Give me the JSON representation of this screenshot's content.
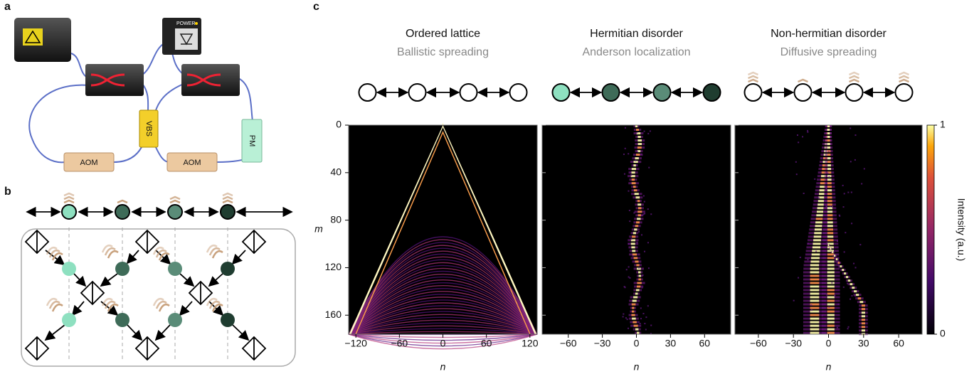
{
  "panels": {
    "a": {
      "letter": "a",
      "labels": {
        "aom_left": "AOM",
        "aom_right": "AOM",
        "vbs": "VBS",
        "pm": "PM",
        "power": "POWER"
      }
    },
    "b": {
      "letter": "b"
    },
    "c": {
      "letter": "c",
      "x_label": "n",
      "y_label": "m",
      "colorbar": {
        "label": "Intensity (a.u.)",
        "ticks": [
          {
            "value": 0,
            "label": "0"
          },
          {
            "value": 1,
            "label": "1"
          }
        ]
      },
      "ylim": [
        0,
        176
      ],
      "yticks": [
        0,
        40,
        80,
        120,
        160
      ],
      "plots": [
        {
          "title": "Ordered lattice",
          "subtitle": "Ballistic spreading",
          "xlim": [
            -130,
            130
          ],
          "xticks": [
            {
              "value": -120,
              "label": "−120"
            },
            {
              "value": -60,
              "label": "−60"
            },
            0,
            60,
            120
          ]
        },
        {
          "title": "Hermitian disorder",
          "subtitle": "Anderson localization",
          "xlim": [
            -83,
            83
          ],
          "xticks": [
            {
              "value": -60,
              "label": "−60"
            },
            {
              "value": -30,
              "label": "−30"
            },
            0,
            30,
            60
          ]
        },
        {
          "title": "Non-hermitian disorder",
          "subtitle": "Diffusive spreading",
          "xlim": [
            -80,
            80
          ],
          "xticks": [
            {
              "value": -60,
              "label": "−60"
            },
            {
              "value": -30,
              "label": "−30"
            },
            0,
            30,
            60
          ]
        }
      ]
    }
  }
}
